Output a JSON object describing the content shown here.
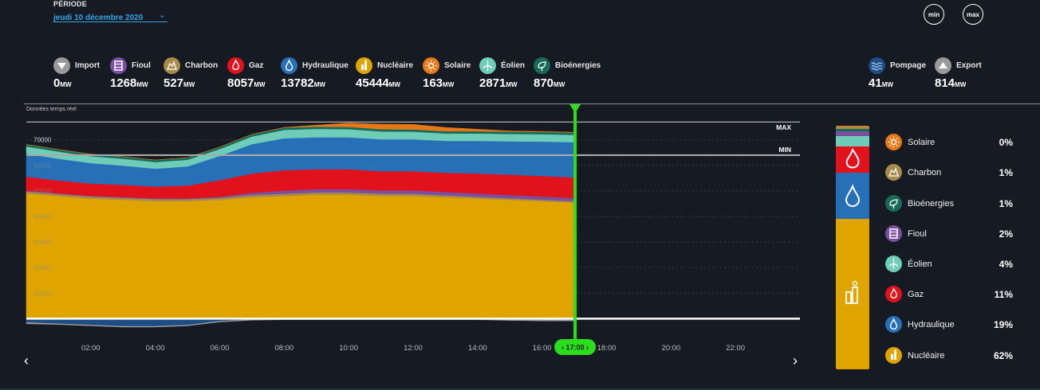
{
  "period": {
    "label": "PÉRIODE",
    "value": "jeudi 10 décembre 2020"
  },
  "buttons": {
    "min": "min",
    "max": "max"
  },
  "sources": [
    {
      "name": "Import",
      "value": "0",
      "unit": "MW",
      "color": "#9a9a9a",
      "icon": "down-arrow-icon"
    },
    {
      "name": "Fioul",
      "value": "1268",
      "unit": "MW",
      "color": "#7a4fa0",
      "icon": "fuel-icon"
    },
    {
      "name": "Charbon",
      "value": "527",
      "unit": "MW",
      "color": "#a88a4a",
      "icon": "coal-icon"
    },
    {
      "name": "Gaz",
      "value": "8057",
      "unit": "MW",
      "color": "#e2121c",
      "icon": "flame-icon"
    },
    {
      "name": "Hydraulique",
      "value": "13782",
      "unit": "MW",
      "color": "#2770b8",
      "icon": "drop-icon"
    },
    {
      "name": "Nucléaire",
      "value": "45444",
      "unit": "MW",
      "color": "#e0a400",
      "icon": "nuclear-icon"
    },
    {
      "name": "Solaire",
      "value": "163",
      "unit": "MW",
      "color": "#e67817",
      "icon": "sun-icon"
    },
    {
      "name": "Éolien",
      "value": "2871",
      "unit": "MW",
      "color": "#6dcdb8",
      "icon": "wind-icon"
    },
    {
      "name": "Bioénergies",
      "value": "870",
      "unit": "MW",
      "color": "#166a57",
      "icon": "leaf-icon"
    }
  ],
  "exchanges": [
    {
      "name": "Pompage",
      "value": "41",
      "unit": "MW",
      "color": "#1e4d86",
      "icon": "waves-icon"
    },
    {
      "name": "Export",
      "value": "814",
      "unit": "MW",
      "color": "#9a9a9a",
      "icon": "up-arrow-icon"
    }
  ],
  "realtime_label": "Données temps réel",
  "chart_data": {
    "type": "area",
    "x_ticks": [
      "02:00",
      "04:00",
      "06:00",
      "08:00",
      "10:00",
      "12:00",
      "14:00",
      "16:00",
      "18:00",
      "20:00",
      "22:00"
    ],
    "y_ticks": [
      10000,
      20000,
      30000,
      40000,
      50000,
      60000,
      70000
    ],
    "ylim": [
      -3000,
      78000
    ],
    "xlim_hours": [
      0,
      24
    ],
    "cursor": {
      "time": "17:00",
      "hour": 17
    },
    "ref_lines": [
      {
        "label": "MAX",
        "value": 77000
      },
      {
        "label": "MIN",
        "value": 64000
      }
    ],
    "x_hours": [
      0,
      1,
      2,
      3,
      4,
      5,
      6,
      7,
      8,
      9,
      10,
      11,
      12,
      13,
      14,
      15,
      16,
      17
    ],
    "series": [
      {
        "name": "Nucléaire",
        "color": "#e0a400",
        "values": [
          49000,
          48000,
          47000,
          46500,
          46000,
          46000,
          46500,
          47500,
          48000,
          48500,
          48500,
          48000,
          48000,
          47500,
          47000,
          46500,
          46000,
          45444
        ]
      },
      {
        "name": "Charbon",
        "color": "#a88a4a",
        "values": [
          800,
          800,
          800,
          800,
          800,
          800,
          800,
          900,
          900,
          900,
          900,
          900,
          900,
          800,
          700,
          600,
          550,
          527
        ]
      },
      {
        "name": "Fioul",
        "color": "#7a4fa0",
        "values": [
          300,
          300,
          300,
          300,
          300,
          300,
          400,
          900,
          1200,
          1300,
          1300,
          1300,
          1300,
          1300,
          1300,
          1300,
          1280,
          1268
        ]
      },
      {
        "name": "Gaz",
        "color": "#e2121c",
        "values": [
          5500,
          5000,
          4800,
          4800,
          4600,
          5000,
          6500,
          7500,
          8000,
          7800,
          7800,
          7500,
          7500,
          7500,
          7800,
          8000,
          8000,
          8057
        ]
      },
      {
        "name": "Hydraulique",
        "color": "#2770b8",
        "values": [
          9000,
          8500,
          8000,
          7500,
          7000,
          7500,
          9500,
          11500,
          12500,
          12500,
          12500,
          12500,
          12500,
          12500,
          12800,
          13000,
          13500,
          13782
        ]
      },
      {
        "name": "Éolien",
        "color": "#6dcdb8",
        "values": [
          2800,
          2800,
          2700,
          2700,
          2600,
          2600,
          2700,
          3000,
          3300,
          3300,
          3200,
          3100,
          3000,
          2900,
          2900,
          2900,
          2880,
          2871
        ]
      },
      {
        "name": "Bioénergies",
        "color": "#166a57",
        "values": [
          800,
          800,
          800,
          800,
          800,
          800,
          800,
          850,
          850,
          850,
          850,
          850,
          850,
          850,
          860,
          870,
          870,
          870
        ]
      },
      {
        "name": "Solaire",
        "color": "#e67817",
        "values": [
          0,
          0,
          0,
          0,
          0,
          0,
          0,
          0,
          100,
          600,
          1500,
          2000,
          2000,
          1500,
          800,
          300,
          200,
          163
        ]
      },
      {
        "name": "Pompage",
        "color": "#1e4d86",
        "values": [
          -1500,
          -2000,
          -2500,
          -3000,
          -3000,
          -2500,
          -1000,
          -300,
          -100,
          -100,
          -100,
          -100,
          -100,
          -100,
          -100,
          -100,
          -80,
          -41
        ]
      },
      {
        "name": "Export",
        "color": "#9a9a9a",
        "values": [
          -500,
          -300,
          -300,
          -300,
          -300,
          -300,
          -300,
          -300,
          -300,
          -300,
          -300,
          -300,
          -300,
          -300,
          -300,
          -600,
          -800,
          -814
        ]
      }
    ]
  },
  "breakdown": [
    {
      "name": "Solaire",
      "pct": "0%",
      "share": 0.0,
      "color": "#e67817",
      "icon": "sun-icon"
    },
    {
      "name": "Charbon",
      "pct": "1%",
      "share": 0.01,
      "color": "#a88a4a",
      "icon": "coal-icon"
    },
    {
      "name": "Bioénergies",
      "pct": "1%",
      "share": 0.01,
      "color": "#166a57",
      "icon": "leaf-icon"
    },
    {
      "name": "Fioul",
      "pct": "2%",
      "share": 0.02,
      "color": "#7a4fa0",
      "icon": "fuel-icon"
    },
    {
      "name": "Éolien",
      "pct": "4%",
      "share": 0.04,
      "color": "#6dcdb8",
      "icon": "wind-icon"
    },
    {
      "name": "Gaz",
      "pct": "11%",
      "share": 0.11,
      "color": "#e2121c",
      "icon": "flame-icon"
    },
    {
      "name": "Hydraulique",
      "pct": "19%",
      "share": 0.19,
      "color": "#2770b8",
      "icon": "drop-icon"
    },
    {
      "name": "Nucléaire",
      "pct": "62%",
      "share": 0.62,
      "color": "#e0a400",
      "icon": "nuclear-icon"
    }
  ]
}
